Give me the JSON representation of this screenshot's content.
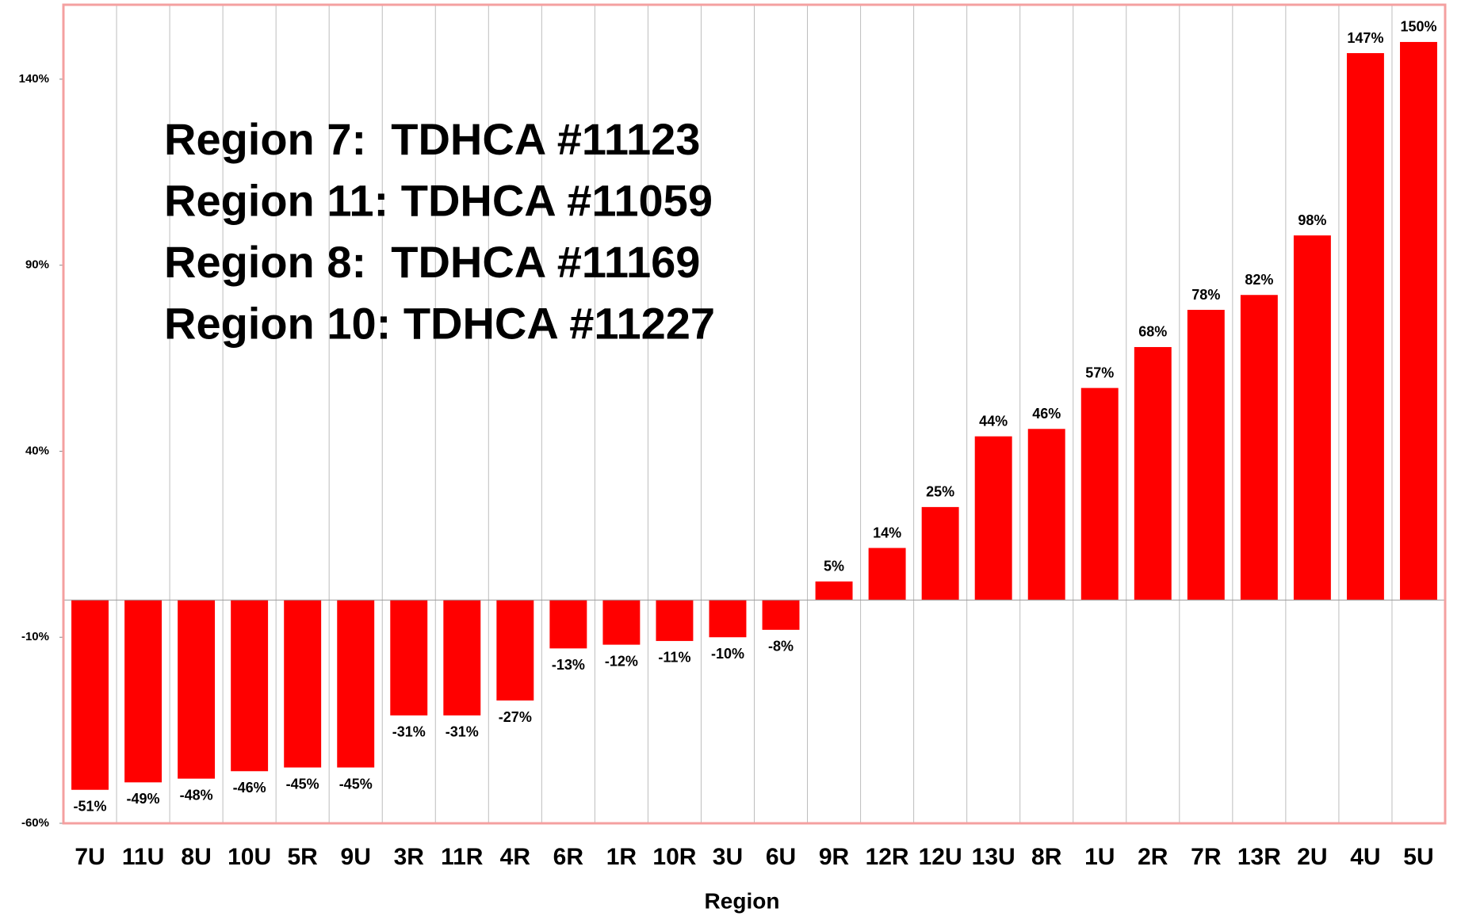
{
  "chart_data": {
    "type": "bar",
    "categories": [
      "7U",
      "11U",
      "8U",
      "10U",
      "5R",
      "9U",
      "3R",
      "11R",
      "4R",
      "6R",
      "1R",
      "10R",
      "3U",
      "6U",
      "9R",
      "12R",
      "12U",
      "13U",
      "8R",
      "1U",
      "2R",
      "7R",
      "13R",
      "2U",
      "4U",
      "5U"
    ],
    "values": [
      -51,
      -49,
      -48,
      -46,
      -45,
      -45,
      -31,
      -31,
      -27,
      -13,
      -12,
      -11,
      -10,
      -8,
      5,
      14,
      25,
      44,
      46,
      57,
      68,
      78,
      82,
      98,
      147,
      150
    ],
    "value_labels": [
      "-51%",
      "-49%",
      "-48%",
      "-46%",
      "-45%",
      "-45%",
      "-31%",
      "-31%",
      "-27%",
      "-13%",
      "-12%",
      "-11%",
      "-10%",
      "-8%",
      "5%",
      "14%",
      "25%",
      "44%",
      "46%",
      "57%",
      "68%",
      "78%",
      "82%",
      "98%",
      "147%",
      "150%"
    ],
    "color": "#ff0000",
    "ylim": [
      -60,
      160
    ],
    "yticks": [
      {
        "value": -60,
        "label": "-60%"
      },
      {
        "value": -10,
        "label": "-10%"
      },
      {
        "value": 40,
        "label": "40%"
      },
      {
        "value": 90,
        "label": "90%"
      },
      {
        "value": 140,
        "label": "140%"
      }
    ],
    "x_label": "Region",
    "annotations": [
      "Region 7:  TDHCA #11123",
      "Region 11: TDHCA #11059",
      "Region 8:  TDHCA #11169",
      "Region 10: TDHCA #11227"
    ],
    "grid": true
  }
}
